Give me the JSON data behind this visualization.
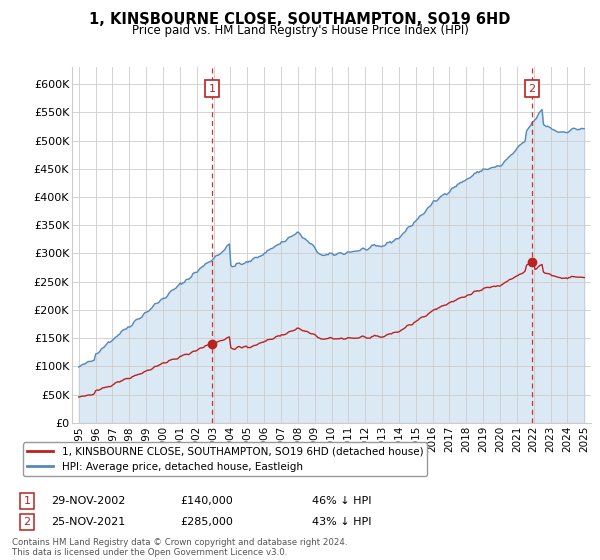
{
  "title": "1, KINSBOURNE CLOSE, SOUTHAMPTON, SO19 6HD",
  "subtitle": "Price paid vs. HM Land Registry's House Price Index (HPI)",
  "ylabel_ticks": [
    "£0",
    "£50K",
    "£100K",
    "£150K",
    "£200K",
    "£250K",
    "£300K",
    "£350K",
    "£400K",
    "£450K",
    "£500K",
    "£550K",
    "£600K"
  ],
  "ytick_values": [
    0,
    50000,
    100000,
    150000,
    200000,
    250000,
    300000,
    350000,
    400000,
    450000,
    500000,
    550000,
    600000
  ],
  "ylim": [
    0,
    630000
  ],
  "xlim_years": [
    1994.6,
    2025.4
  ],
  "xtick_years": [
    1995,
    1996,
    1997,
    1998,
    1999,
    2000,
    2001,
    2002,
    2003,
    2004,
    2005,
    2006,
    2007,
    2008,
    2009,
    2010,
    2011,
    2012,
    2013,
    2014,
    2015,
    2016,
    2017,
    2018,
    2019,
    2020,
    2021,
    2022,
    2023,
    2024,
    2025
  ],
  "hpi_color": "#5588bb",
  "hpi_fill_color": "#cce0f0",
  "sale_color": "#bb2222",
  "dashed_vline_color": "#cc3333",
  "background_color": "#ffffff",
  "grid_color": "#cccccc",
  "legend_label_sale": "1, KINSBOURNE CLOSE, SOUTHAMPTON, SO19 6HD (detached house)",
  "legend_label_hpi": "HPI: Average price, detached house, Eastleigh",
  "sale1_year": 2002.91,
  "sale1_price": 140000,
  "sale1_label": "1",
  "sale1_date": "29-NOV-2002",
  "sale1_pct": "46% ↓ HPI",
  "sale2_year": 2021.9,
  "sale2_price": 285000,
  "sale2_label": "2",
  "sale2_date": "25-NOV-2021",
  "sale2_pct": "43% ↓ HPI",
  "footer": "Contains HM Land Registry data © Crown copyright and database right 2024.\nThis data is licensed under the Open Government Licence v3.0."
}
